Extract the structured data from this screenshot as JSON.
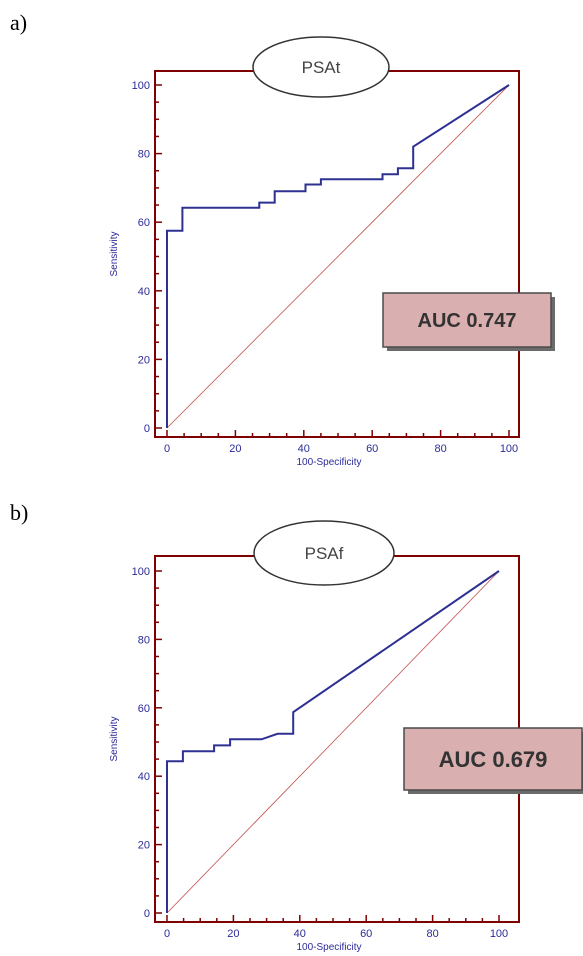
{
  "chart_data": [
    {
      "type": "line",
      "panel_label": "a)",
      "title": "PSAt",
      "xlabel": "100-Specificity",
      "ylabel": "Sensitivity",
      "xlim": [
        0,
        100
      ],
      "ylim": [
        0,
        100
      ],
      "x_ticks": [
        "0",
        "20",
        "40",
        "60",
        "80",
        "100"
      ],
      "y_ticks": [
        "0",
        "20",
        "40",
        "60",
        "80",
        "100"
      ],
      "annotation": "AUC 0.747",
      "series": [
        {
          "color": "#2e3192",
          "x": [
            0,
            0,
            0,
            4.5,
            4.5,
            27,
            27,
            31.5,
            31.5,
            40.5,
            40.5,
            45,
            45,
            63,
            63,
            67.5,
            67.5,
            72,
            72,
            100
          ],
          "y": [
            0,
            57.5,
            57.5,
            57.5,
            64.2,
            64.2,
            65.7,
            65.7,
            69,
            69,
            71,
            71,
            72.5,
            72.5,
            74,
            74,
            75.7,
            75.7,
            82,
            100
          ]
        }
      ],
      "reference_line": {
        "x": [
          0,
          100
        ],
        "y": [
          0,
          100
        ],
        "color": "#c0504d"
      }
    },
    {
      "type": "line",
      "panel_label": "b)",
      "title": "PSAf",
      "xlabel": "100-Specificity",
      "ylabel": "Sensitivity",
      "xlim": [
        0,
        100
      ],
      "ylim": [
        0,
        100
      ],
      "x_ticks": [
        "0",
        "20",
        "40",
        "60",
        "80",
        "100"
      ],
      "y_ticks": [
        "0",
        "20",
        "40",
        "60",
        "80",
        "100"
      ],
      "annotation": "AUC 0.679",
      "series": [
        {
          "color": "#2e3192",
          "x": [
            0,
            0,
            4.8,
            4.8,
            14.2,
            14.2,
            19,
            19,
            28.5,
            33.3,
            38,
            38,
            100
          ],
          "y": [
            0,
            44.4,
            44.4,
            47.3,
            47.3,
            49,
            49,
            50.8,
            50.8,
            52.4,
            52.4,
            58.7,
            100
          ]
        }
      ],
      "reference_line": {
        "x": [
          0,
          100
        ],
        "y": [
          0,
          100
        ],
        "color": "#c0504d"
      }
    }
  ]
}
